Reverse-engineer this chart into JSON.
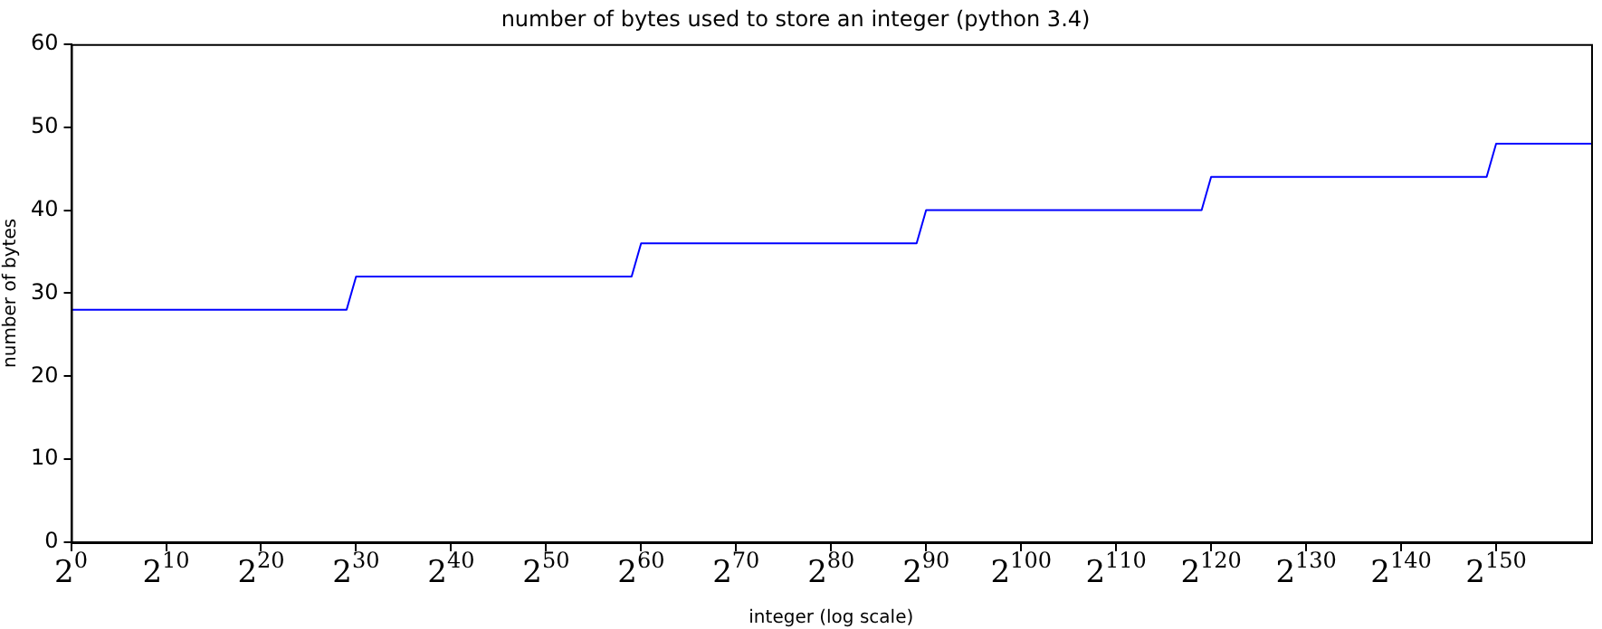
{
  "chart_data": {
    "type": "line",
    "title": "number of bytes used to store an integer (python 3.4)",
    "xlabel": "integer (log scale)",
    "ylabel": "number of bytes",
    "x": [
      1,
      536870912,
      1073741824,
      576460752303423488,
      1152921504606846976,
      6.1897001964269e+26,
      1.2379400392853803e+27,
      6.64613997892458e+35,
      1.329227995784916e+36,
      7.136238463529799e+44,
      1.42724769270596e+45,
      1.461501637330903e+48
    ],
    "series": [
      {
        "color": "#0000ff",
        "values": [
          28,
          28,
          32,
          32,
          36,
          36,
          40,
          40,
          44,
          44,
          48,
          48
        ]
      }
    ],
    "log": "x",
    "xlim": [
      1,
      1.461501637330903e+48
    ],
    "xticks": [
      {
        "value": 1,
        "label": "2$^{0}$"
      },
      {
        "value": 1024,
        "label": "2$^{10}$"
      },
      {
        "value": 1048576,
        "label": "2$^{20}$"
      },
      {
        "value": 1073741824,
        "label": "2$^{30}$"
      },
      {
        "value": 1099511627776,
        "label": "2$^{40}$"
      },
      {
        "value": 1125899906842624,
        "label": "2$^{50}$"
      },
      {
        "value": 1152921504606846976,
        "label": "2$^{60}$"
      },
      {
        "value": 1.1805916207174113e+21,
        "label": "2$^{70}$"
      },
      {
        "value": 1.2089258196146292e+24,
        "label": "2$^{80}$"
      },
      {
        "value": 1.2379400392853803e+27,
        "label": "2$^{90}$"
      },
      {
        "value": 1.2676506002282294e+30,
        "label": "2$^{100}$"
      },
      {
        "value": 1.298074214633707e+33,
        "label": "2$^{110}$"
      },
      {
        "value": 1.329227995784916e+36,
        "label": "2$^{120}$"
      },
      {
        "value": 1.361129467683754e+39,
        "label": "2$^{130}$"
      },
      {
        "value": 1.393796574908164e+42,
        "label": "2$^{140}$"
      },
      {
        "value": 1.42724769270596e+45,
        "label": "2$^{150}$"
      }
    ],
    "ylim": [
      0,
      60
    ],
    "yticks": [
      0,
      10,
      20,
      30,
      40,
      50,
      60
    ],
    "grid": false,
    "legend": false,
    "marker": "none",
    "line_style": "solid"
  }
}
